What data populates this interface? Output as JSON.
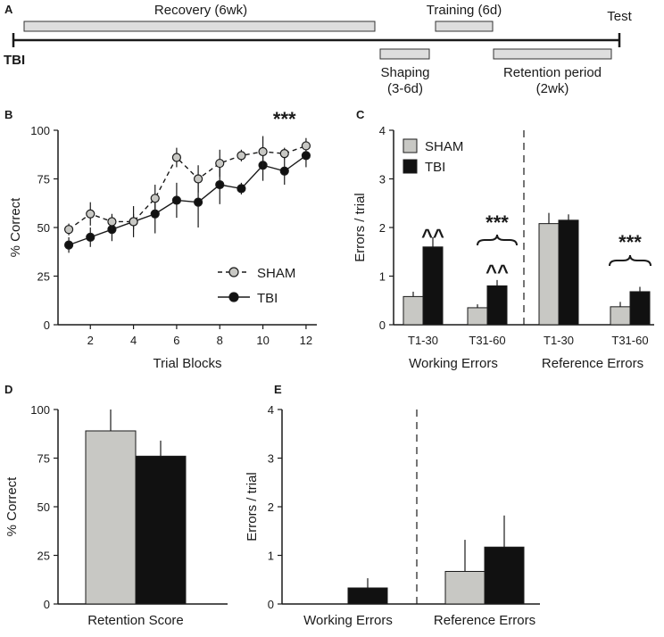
{
  "panels": {
    "A": "A",
    "B": "B",
    "C": "C",
    "D": "D",
    "E": "E"
  },
  "colors": {
    "sham": "#c8c8c4",
    "tbi": "#111111",
    "timeline_box": "#dedede",
    "axis": "#1a1a1a"
  },
  "timeline": {
    "recovery": "Recovery (6wk)",
    "training": "Training (6d)",
    "test": "Test",
    "tbi": "TBI",
    "shaping_line1": "Shaping",
    "shaping_line2": "(3-6d)",
    "retention_line1": "Retention period",
    "retention_line2": "(2wk)"
  },
  "chart_data": [
    {
      "id": "B",
      "type": "line",
      "xlabel": "Trial Blocks",
      "ylabel": "% Correct",
      "xlim": [
        0.5,
        12.5
      ],
      "ylim": [
        0,
        100
      ],
      "xticks": [
        2,
        4,
        6,
        8,
        10,
        12
      ],
      "yticks": [
        0,
        25,
        50,
        75,
        100
      ],
      "x": [
        1,
        2,
        3,
        4,
        5,
        6,
        7,
        8,
        9,
        10,
        11,
        12
      ],
      "series": [
        {
          "name": "SHAM",
          "style": "dashed",
          "marker": "light",
          "values": [
            49,
            57,
            53,
            53,
            65,
            86,
            75,
            83,
            87,
            89,
            88,
            92
          ],
          "errors": [
            3,
            6,
            4,
            4,
            7,
            5,
            7,
            7,
            3,
            8,
            3,
            4
          ]
        },
        {
          "name": "TBI",
          "style": "solid",
          "marker": "dark",
          "values": [
            41,
            45,
            49,
            53,
            57,
            64,
            63,
            72,
            70,
            82,
            79,
            87
          ],
          "errors": [
            4,
            5,
            6,
            8,
            10,
            9,
            13,
            10,
            3,
            8,
            7,
            6
          ]
        }
      ],
      "annotations": [
        {
          "x": 11,
          "text": "***"
        }
      ],
      "legend": [
        "SHAM",
        "TBI"
      ]
    },
    {
      "id": "C",
      "type": "bar",
      "ylabel": "Errors / trial",
      "ylim": [
        0,
        4
      ],
      "yticks": [
        0,
        1,
        2,
        3,
        4
      ],
      "categories": [
        "T1-30",
        "T31-60",
        "T1-30",
        "T31-60"
      ],
      "groups": [
        "Working Errors",
        "Reference Errors"
      ],
      "series": [
        {
          "name": "SHAM",
          "values": [
            0.58,
            0.35,
            2.08,
            0.37
          ],
          "errors": [
            0.1,
            0.07,
            0.22,
            0.1
          ]
        },
        {
          "name": "TBI",
          "values": [
            1.6,
            0.8,
            2.15,
            0.68
          ],
          "errors": [
            0.2,
            0.12,
            0.12,
            0.1
          ]
        }
      ],
      "annotations": [
        {
          "text": "^^",
          "category": 0
        },
        {
          "text": "^^",
          "category": 1
        },
        {
          "text": "***",
          "category": 1
        },
        {
          "text": "***",
          "category": 3
        }
      ],
      "legend": [
        "SHAM",
        "TBI"
      ]
    },
    {
      "id": "D",
      "type": "bar",
      "xlabel": "Retention Score",
      "ylabel": "% Correct",
      "ylim": [
        0,
        100
      ],
      "yticks": [
        0,
        25,
        50,
        75,
        100
      ],
      "series": [
        {
          "name": "SHAM",
          "values": [
            89
          ],
          "errors": [
            11
          ]
        },
        {
          "name": "TBI",
          "values": [
            76
          ],
          "errors": [
            8
          ]
        }
      ]
    },
    {
      "id": "E",
      "type": "bar",
      "ylabel": "Errors / trial",
      "ylim": [
        0,
        4
      ],
      "yticks": [
        0,
        1,
        2,
        3,
        4
      ],
      "categories": [
        "Working Errors",
        "Reference Errors"
      ],
      "series": [
        {
          "name": "SHAM",
          "values": [
            0,
            0.67
          ],
          "errors": [
            0,
            0.65
          ]
        },
        {
          "name": "TBI",
          "values": [
            0.33,
            1.17
          ],
          "errors": [
            0.2,
            0.65
          ]
        }
      ]
    }
  ]
}
